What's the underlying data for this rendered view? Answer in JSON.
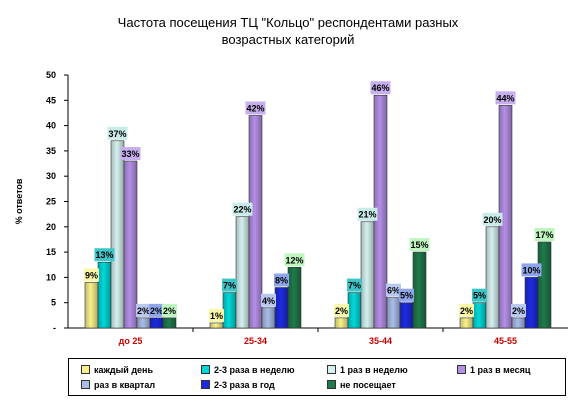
{
  "chart_data": {
    "type": "bar",
    "title_lines": [
      "Частота посещения ТЦ \"Кольцо\" респондентами разных",
      "возрастных категорий"
    ],
    "ylabel": "% ответов",
    "ylim": [
      0,
      50
    ],
    "yticks": [
      0,
      5,
      10,
      15,
      20,
      25,
      30,
      35,
      40,
      45,
      50
    ],
    "yticklabels": [
      "-",
      "5",
      "10",
      "15",
      "20",
      "25",
      "30",
      "35",
      "40",
      "45",
      "50"
    ],
    "grid": false,
    "legend_position": "bottom",
    "categories": [
      "до 25",
      "25-34",
      "35-44",
      "45-55"
    ],
    "series": [
      {
        "name": "каждый день",
        "color": "#f7f08a",
        "label_bg": "#f9f7a8",
        "values": [
          9,
          1,
          2,
          2
        ]
      },
      {
        "name": "2-3 раза в неделю",
        "color": "#00d8d8",
        "label_bg": "#3fc5c8",
        "values": [
          13,
          7,
          7,
          5
        ]
      },
      {
        "name": "1 раз в неделю",
        "color": "#d4f0ee",
        "label_bg": "#c9ecea",
        "values": [
          37,
          22,
          21,
          20
        ]
      },
      {
        "name": "1 раз в месяц",
        "color": "#b48fe6",
        "label_bg": "#c7aeed",
        "values": [
          33,
          42,
          46,
          44
        ]
      },
      {
        "name": "раз в квартал",
        "color": "#a9bde6",
        "label_bg": "#b9c9ee",
        "values": [
          2,
          4,
          6,
          2
        ]
      },
      {
        "name": "2-3 раза в год",
        "color": "#1d2be0",
        "label_bg": "#8fa6ec",
        "values": [
          2,
          8,
          5,
          10
        ]
      },
      {
        "name": "не посещает",
        "color": "#1f7a4a",
        "label_bg": "#bff5bf",
        "values": [
          2,
          12,
          15,
          17
        ]
      }
    ],
    "data_labels": [
      [
        "9%",
        "13%",
        "37%",
        "33%",
        "2%",
        "2%",
        "2%"
      ],
      [
        "1%",
        "7%",
        "22%",
        "42%",
        "4%",
        "8%",
        "12%"
      ],
      [
        "2%",
        "7%",
        "21%",
        "46%",
        "6%",
        "5%",
        "15%"
      ],
      [
        "2%",
        "5%",
        "20%",
        "44%",
        "2%",
        "10%",
        "17%"
      ]
    ],
    "category_label_color": "#cc0000"
  }
}
